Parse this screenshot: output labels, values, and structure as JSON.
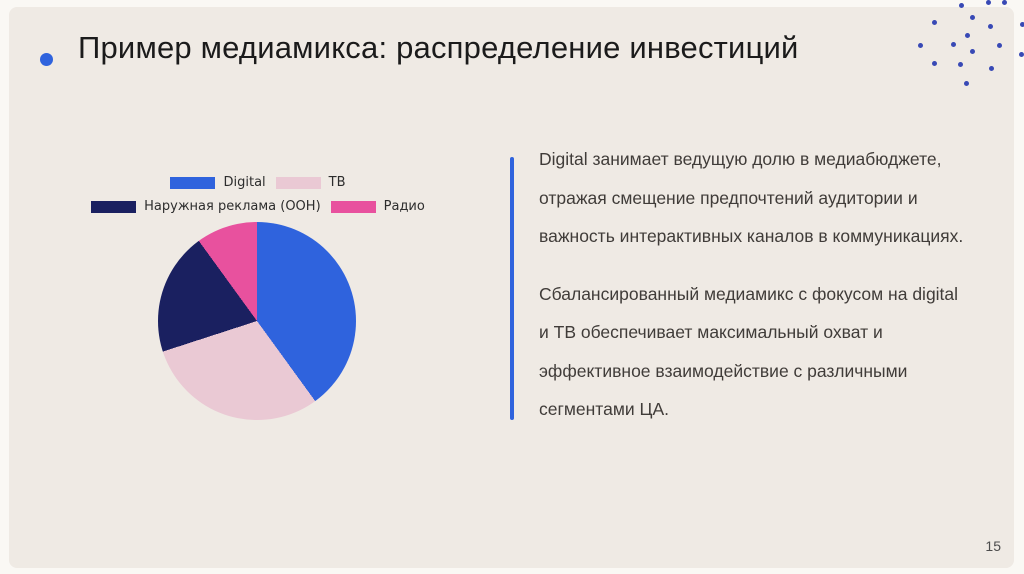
{
  "slide": {
    "title": "Пример медиамикса: распределение инвестиций",
    "page_number": "15",
    "accent_color": "#2f63dd",
    "background_color": "#efeae4"
  },
  "chart_data": {
    "type": "pie",
    "categories": [
      "Digital",
      "ТВ",
      "Наружная реклама (OOH)",
      "Радио"
    ],
    "values": [
      40,
      30,
      20,
      10
    ],
    "unit": "percent of media budget",
    "colors": [
      "#2f63dd",
      "#eac9d4",
      "#1a2060",
      "#e8519e"
    ],
    "start_angle_deg": 0,
    "direction": "clockwise",
    "legend_position": "top",
    "legend_rows": [
      [
        "Digital",
        "ТВ"
      ],
      [
        "Наружная реклама (OOH)",
        "Радио"
      ]
    ],
    "title": "",
    "data_labels": false
  },
  "insights": {
    "paragraph_1_lines": [
      "Digital занимает ведущую долю в медиабюджете,",
      "отражая смещение предпочтений аудитории и",
      "важность интерактивных каналов в коммуникациях."
    ],
    "paragraph_2_lines": [
      "Сбалансированный медиамикс с фокусом на digital",
      "и ТВ обеспечивает максимальный охват и",
      "эффективное взаимодействие с различными",
      "сегментами ЦА."
    ]
  }
}
